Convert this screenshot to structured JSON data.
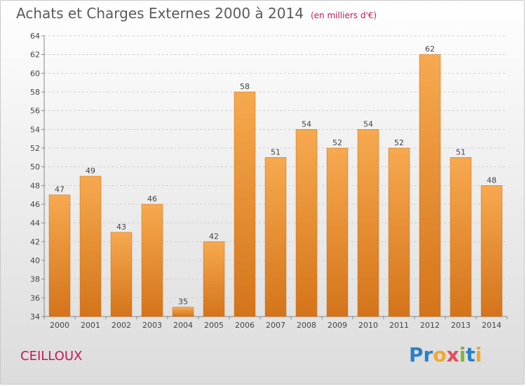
{
  "header": {
    "title": "Achats et Charges Externes 2000 à 2014",
    "unit": "(en milliers d'€)"
  },
  "footer": {
    "place": "CEILLOUX",
    "logo": {
      "text": "Proxiti",
      "letters": [
        {
          "char": "P",
          "color": "#2a7fc9"
        },
        {
          "char": "r",
          "color": "#2a7fc9"
        },
        {
          "char": "o",
          "color": "#f0a830"
        },
        {
          "char": "x",
          "color": "#e84a5f"
        },
        {
          "char": "i",
          "color": "#7fb636"
        },
        {
          "char": "t",
          "color": "#2a7fc9"
        },
        {
          "char": "i",
          "color": "#f0a830"
        }
      ]
    }
  },
  "colors": {
    "bar_top": "#f7a94f",
    "bar_bottom": "#d4741a",
    "accent": "#c2185b"
  },
  "chart_data": {
    "type": "bar",
    "categories": [
      "2000",
      "2001",
      "2002",
      "2003",
      "2004",
      "2005",
      "2006",
      "2007",
      "2008",
      "2009",
      "2010",
      "2011",
      "2012",
      "2013",
      "2014"
    ],
    "values": [
      47,
      49,
      43,
      46,
      35,
      42,
      58,
      51,
      54,
      52,
      54,
      52,
      62,
      51,
      48
    ],
    "title": "Achats et Charges Externes 2000 à 2014",
    "subtitle": "(en milliers d'€)",
    "xlabel": "",
    "ylabel": "",
    "ylim": [
      34,
      64
    ],
    "yticks": [
      34,
      36,
      38,
      40,
      42,
      44,
      46,
      48,
      50,
      52,
      54,
      56,
      58,
      60,
      62,
      64
    ],
    "grid": true,
    "data_labels": true
  }
}
